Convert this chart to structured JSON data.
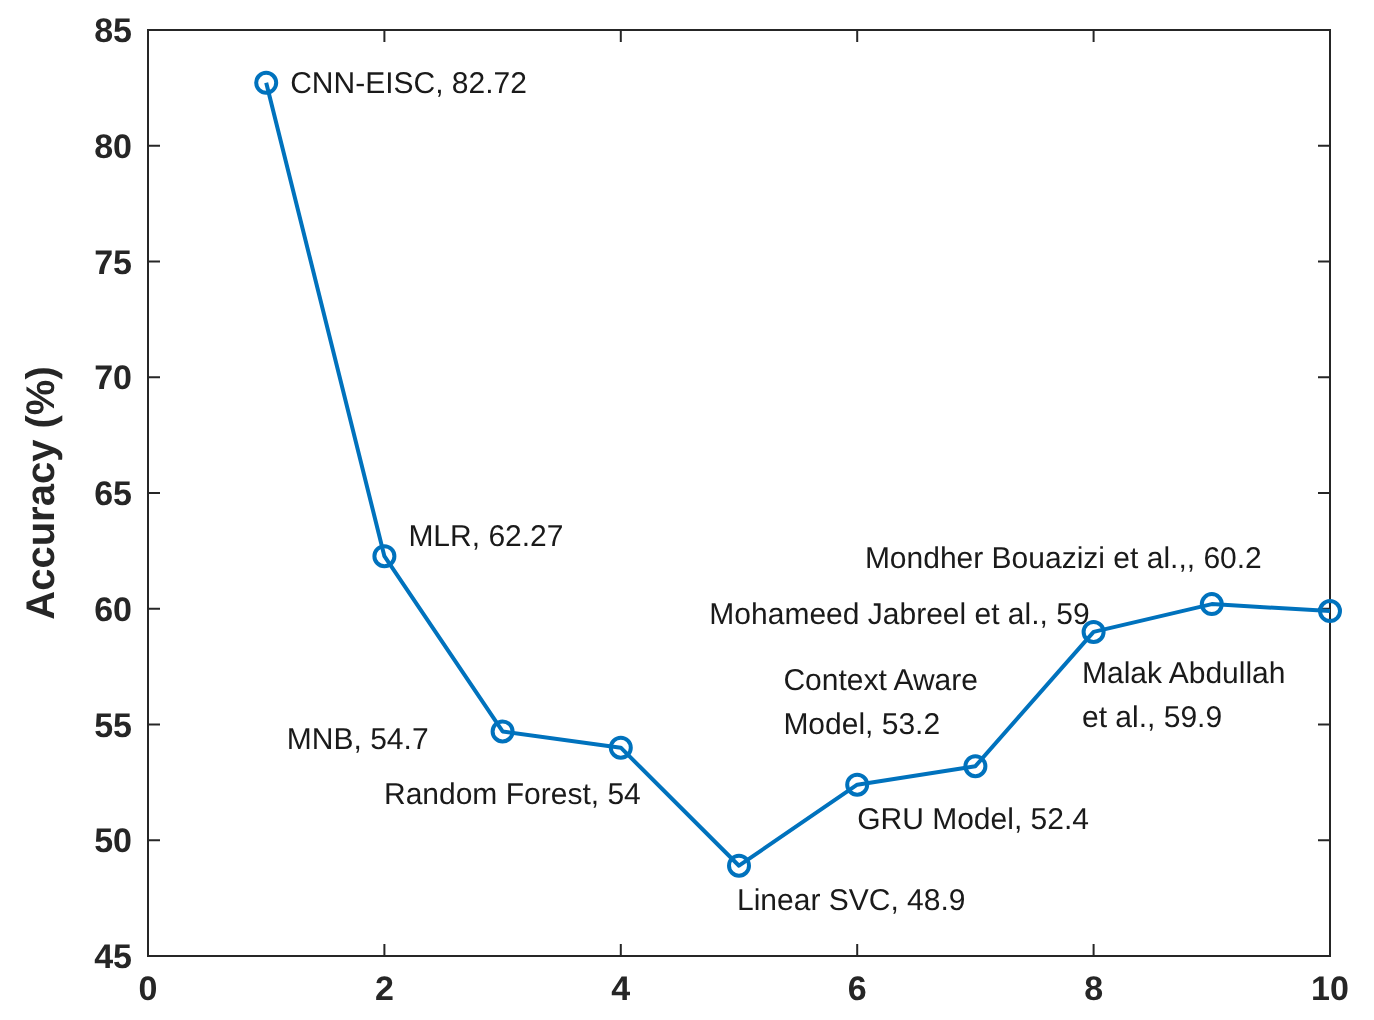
{
  "chart_data": {
    "type": "line",
    "ylabel": "Accuracy (%)",
    "x": [
      1,
      2,
      3,
      4,
      5,
      6,
      7,
      8,
      9,
      10
    ],
    "series": [
      {
        "color": "#0072bd",
        "values": [
          82.72,
          62.27,
          54.7,
          54,
          48.9,
          52.4,
          53.2,
          59,
          60.2,
          59.9
        ]
      }
    ],
    "xlim": [
      0,
      10
    ],
    "xticks": [
      0,
      2,
      4,
      6,
      8,
      10
    ],
    "ylim": [
      45,
      85
    ],
    "yticks": [
      45,
      50,
      55,
      60,
      65,
      70,
      75,
      80,
      85
    ],
    "marker": "circle",
    "line_style": "solid",
    "annotations": [
      {
        "text": "CNN-EISC, 82.72",
        "x": 1,
        "y": 82.72
      },
      {
        "text": "MLR, 62.27",
        "x": 2,
        "y": 62.27
      },
      {
        "text": "MNB, 54.7",
        "x": 3,
        "y": 54.7
      },
      {
        "text": "Random Forest, 54",
        "x": 4,
        "y": 54
      },
      {
        "text": "Linear SVC, 48.9",
        "x": 5,
        "y": 48.9
      },
      {
        "text": "GRU Model, 52.4",
        "x": 6,
        "y": 52.4
      },
      {
        "text": "Context Aware\nModel, 53.2",
        "x": 7,
        "y": 53.2
      },
      {
        "text": "Mohameed Jabreel et al., 59",
        "x": 8,
        "y": 59
      },
      {
        "text": "Mondher Bouazizi et al.,, 60.2",
        "x": 9,
        "y": 60.2
      },
      {
        "text": "Malak Abdullah\net al., 59.9",
        "x": 10,
        "y": 59.9
      }
    ]
  }
}
